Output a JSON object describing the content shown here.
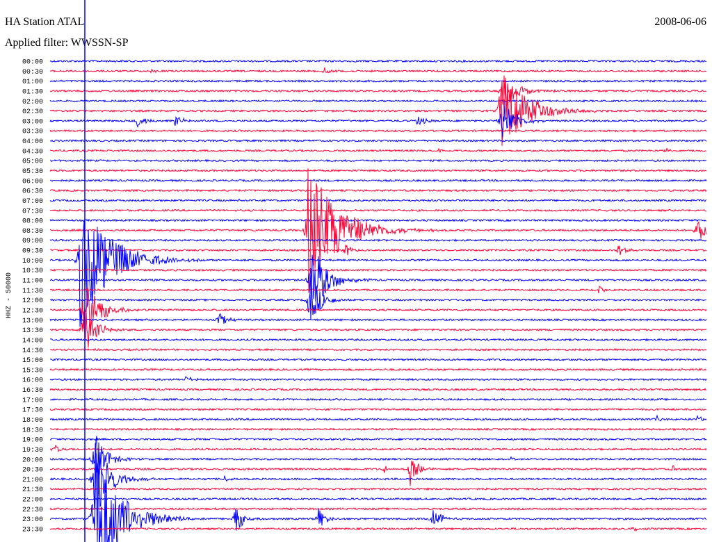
{
  "header": {
    "title": "HA Station ATAL",
    "date": "2008-06-06",
    "filter": "Applied filter: WWSSN-SP"
  },
  "axis_label": "HHZ - 50000",
  "rows": [
    "00:00",
    "00:30",
    "01:00",
    "01:30",
    "02:00",
    "02:30",
    "03:00",
    "03:30",
    "04:00",
    "04:30",
    "05:00",
    "05:30",
    "06:00",
    "06:30",
    "07:00",
    "07:30",
    "08:00",
    "08:30",
    "09:00",
    "09:30",
    "10:00",
    "10:30",
    "11:00",
    "11:30",
    "12:00",
    "12:30",
    "13:00",
    "13:30",
    "14:00",
    "14:30",
    "15:00",
    "15:30",
    "16:00",
    "16:30",
    "17:00",
    "17:30",
    "18:00",
    "18:30",
    "19:00",
    "19:30",
    "20:00",
    "20:30",
    "21:00",
    "21:30",
    "22:00",
    "22:30",
    "23:00",
    "23:30"
  ]
}
